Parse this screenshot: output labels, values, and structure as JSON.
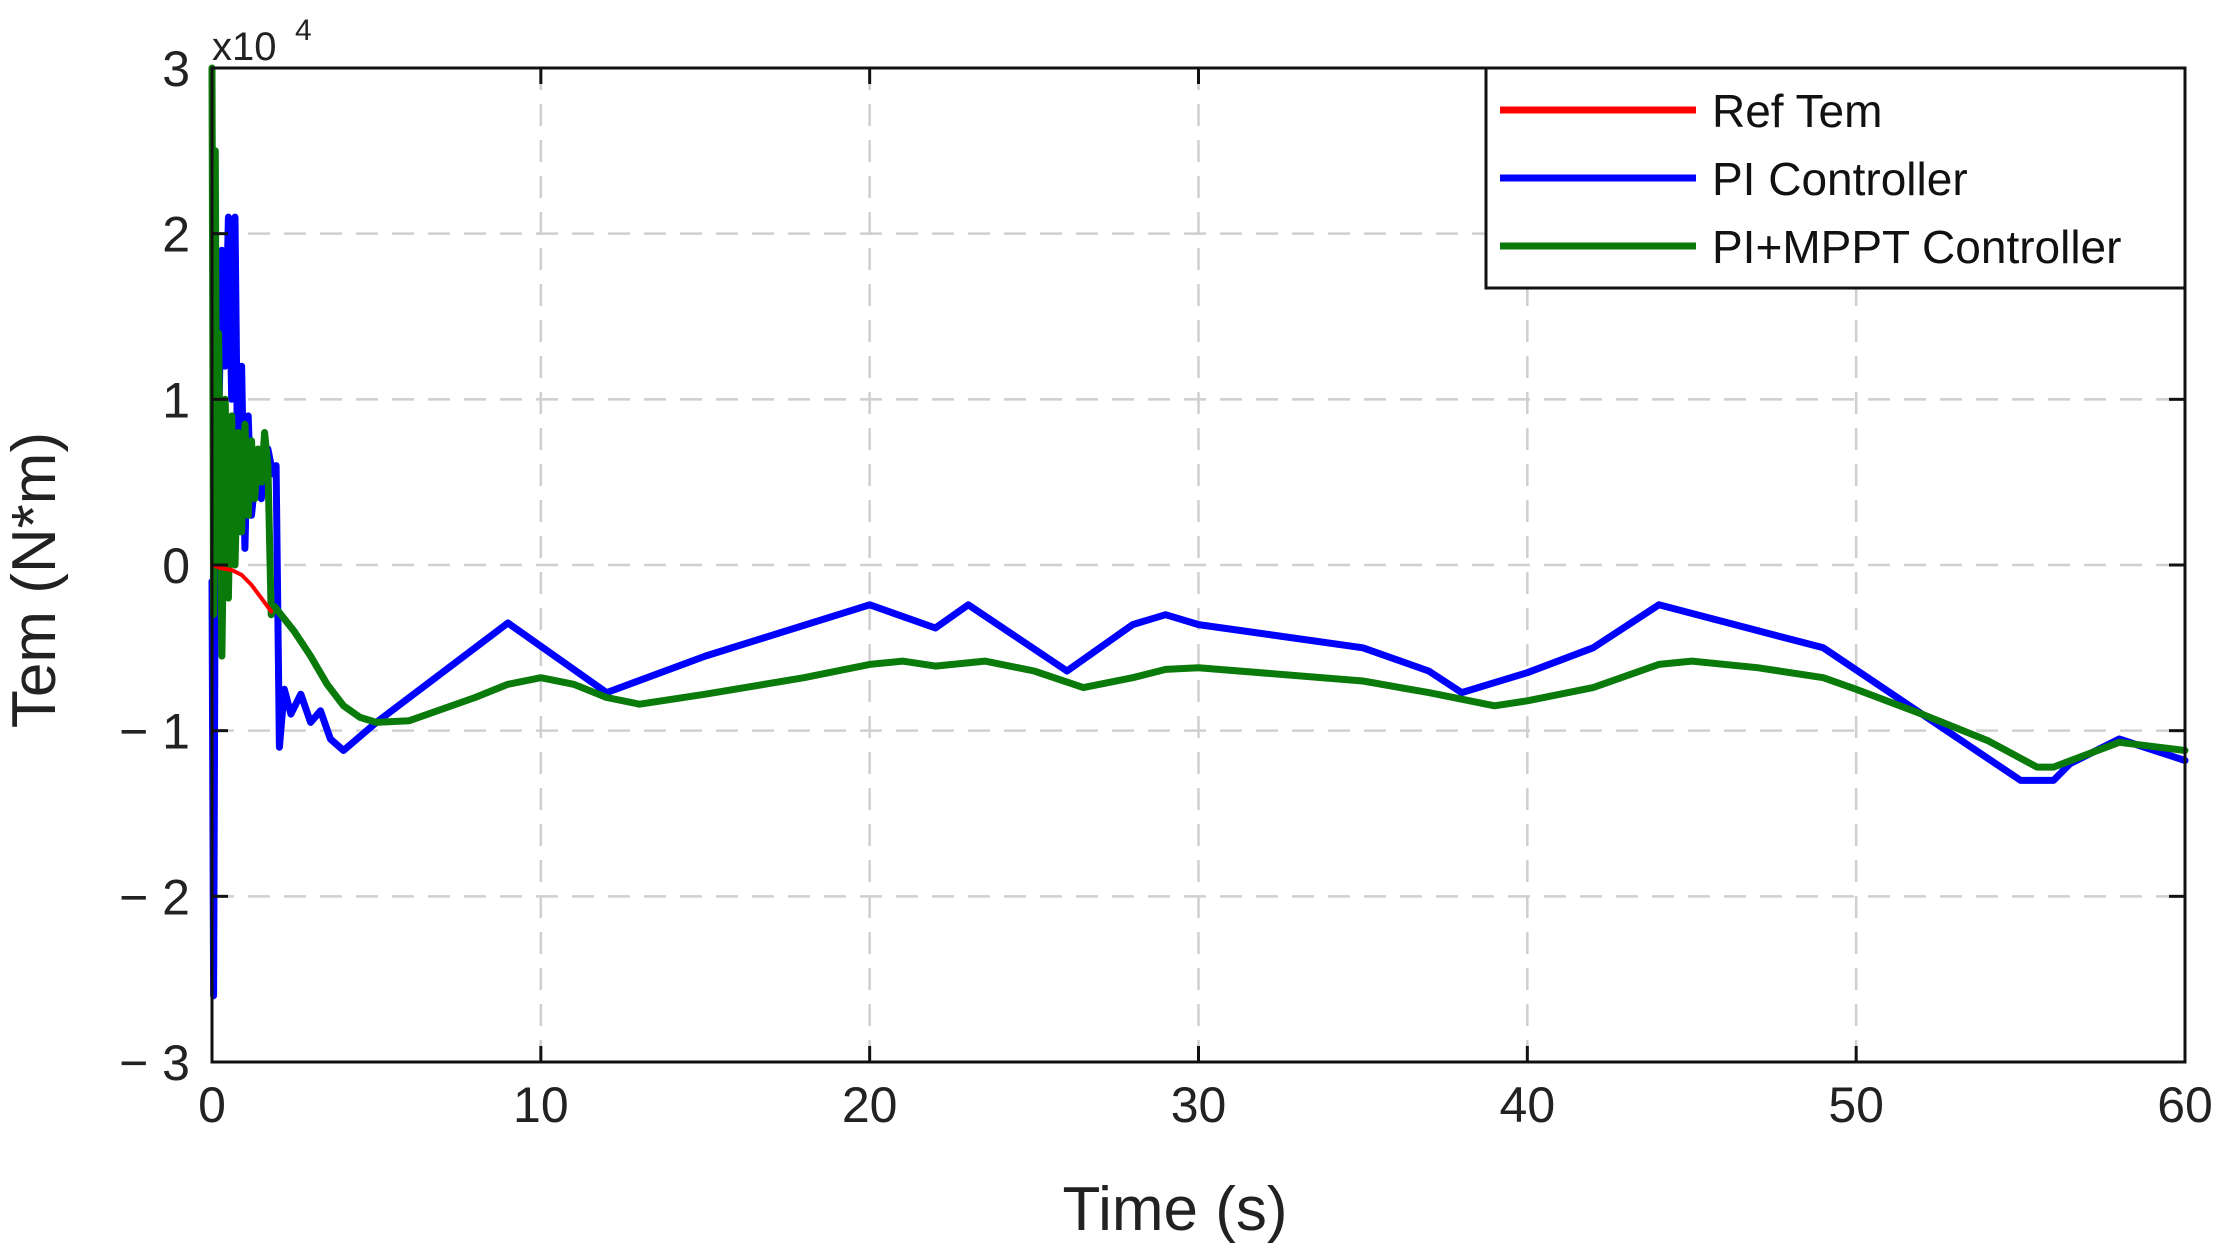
{
  "chart_data": {
    "type": "line",
    "xlabel": "Time (s)",
    "ylabel": "Tem (N*m)",
    "y_multiplier": {
      "base": "x10",
      "exponent": "4"
    },
    "xlim": [
      0,
      60
    ],
    "ylim": [
      -3,
      3
    ],
    "xticks": [
      0,
      10,
      20,
      30,
      40,
      50,
      60
    ],
    "yticks": [
      3,
      2,
      1,
      0,
      -1,
      -2,
      -3
    ],
    "xtick_labels": [
      "0",
      "10",
      "20",
      "30",
      "40",
      "50",
      "60"
    ],
    "ytick_labels": [
      "3",
      "2",
      "1",
      "0",
      "− 1",
      "− 2",
      "− 3"
    ],
    "grid": true,
    "legend_position": "top-right",
    "series": [
      {
        "name": "Ref Tem",
        "color": "#ff0000",
        "points": [
          [
            0,
            0
          ],
          [
            0.3,
            -0.02
          ],
          [
            0.6,
            -0.03
          ],
          [
            0.9,
            -0.06
          ],
          [
            1.2,
            -0.12
          ],
          [
            1.5,
            -0.2
          ],
          [
            1.8,
            -0.28
          ]
        ]
      },
      {
        "name": "PI Controller",
        "color": "#0000ff",
        "points": [
          [
            0,
            -0.1
          ],
          [
            0.05,
            -2.6
          ],
          [
            0.12,
            1.2
          ],
          [
            0.2,
            0.8
          ],
          [
            0.3,
            1.9
          ],
          [
            0.4,
            1.2
          ],
          [
            0.5,
            2.1
          ],
          [
            0.6,
            1.0
          ],
          [
            0.7,
            2.1
          ],
          [
            0.8,
            0.2
          ],
          [
            0.9,
            1.2
          ],
          [
            1.0,
            0.1
          ],
          [
            1.1,
            0.9
          ],
          [
            1.2,
            0.3
          ],
          [
            1.35,
            0.6
          ],
          [
            1.5,
            0.4
          ],
          [
            1.7,
            0.7
          ],
          [
            1.85,
            0.55
          ],
          [
            1.95,
            0.6
          ],
          [
            2.05,
            -1.1
          ],
          [
            2.2,
            -0.75
          ],
          [
            2.4,
            -0.9
          ],
          [
            2.7,
            -0.78
          ],
          [
            3.0,
            -0.95
          ],
          [
            3.3,
            -0.88
          ],
          [
            3.6,
            -1.05
          ],
          [
            4.0,
            -1.12
          ],
          [
            5.0,
            -0.95
          ],
          [
            9.0,
            -0.35
          ],
          [
            12.0,
            -0.77
          ],
          [
            15.0,
            -0.55
          ],
          [
            20.0,
            -0.24
          ],
          [
            22.0,
            -0.38
          ],
          [
            23.0,
            -0.24
          ],
          [
            26.0,
            -0.64
          ],
          [
            28.0,
            -0.36
          ],
          [
            29.0,
            -0.3
          ],
          [
            30.0,
            -0.36
          ],
          [
            35.0,
            -0.5
          ],
          [
            37.0,
            -0.64
          ],
          [
            38.0,
            -0.77
          ],
          [
            40.0,
            -0.65
          ],
          [
            42.0,
            -0.5
          ],
          [
            44.0,
            -0.24
          ],
          [
            49.0,
            -0.5
          ],
          [
            55.0,
            -1.3
          ],
          [
            56.0,
            -1.3
          ],
          [
            56.5,
            -1.2
          ],
          [
            58.0,
            -1.05
          ],
          [
            60.0,
            -1.18
          ]
        ]
      },
      {
        "name": "PI+MPPT Controller",
        "color": "#0a7a0a",
        "points": [
          [
            0,
            3.0
          ],
          [
            0.05,
            -0.3
          ],
          [
            0.1,
            2.5
          ],
          [
            0.15,
            0.0
          ],
          [
            0.2,
            1.4
          ],
          [
            0.3,
            -0.55
          ],
          [
            0.4,
            1.0
          ],
          [
            0.5,
            -0.2
          ],
          [
            0.6,
            0.9
          ],
          [
            0.7,
            0.0
          ],
          [
            0.8,
            0.8
          ],
          [
            0.9,
            0.2
          ],
          [
            1.0,
            0.85
          ],
          [
            1.1,
            0.3
          ],
          [
            1.2,
            0.75
          ],
          [
            1.3,
            0.4
          ],
          [
            1.4,
            0.7
          ],
          [
            1.5,
            0.5
          ],
          [
            1.6,
            0.8
          ],
          [
            1.7,
            0.6
          ],
          [
            1.8,
            -0.3
          ],
          [
            1.9,
            -0.25
          ],
          [
            2.5,
            -0.4
          ],
          [
            3.0,
            -0.55
          ],
          [
            3.5,
            -0.72
          ],
          [
            4.0,
            -0.85
          ],
          [
            4.5,
            -0.92
          ],
          [
            5.0,
            -0.95
          ],
          [
            6.0,
            -0.94
          ],
          [
            8.0,
            -0.8
          ],
          [
            9.0,
            -0.72
          ],
          [
            10.0,
            -0.68
          ],
          [
            11.0,
            -0.72
          ],
          [
            12.0,
            -0.8
          ],
          [
            13.0,
            -0.84
          ],
          [
            15.0,
            -0.78
          ],
          [
            18.0,
            -0.68
          ],
          [
            20.0,
            -0.6
          ],
          [
            21.0,
            -0.58
          ],
          [
            22.0,
            -0.61
          ],
          [
            23.5,
            -0.58
          ],
          [
            25.0,
            -0.64
          ],
          [
            26.5,
            -0.74
          ],
          [
            28.0,
            -0.68
          ],
          [
            29.0,
            -0.63
          ],
          [
            30.0,
            -0.62
          ],
          [
            35.0,
            -0.7
          ],
          [
            37.0,
            -0.77
          ],
          [
            39.0,
            -0.85
          ],
          [
            40.0,
            -0.82
          ],
          [
            42.0,
            -0.74
          ],
          [
            44.0,
            -0.6
          ],
          [
            45.0,
            -0.58
          ],
          [
            47.0,
            -0.62
          ],
          [
            49.0,
            -0.68
          ],
          [
            50.0,
            -0.75
          ],
          [
            52.0,
            -0.9
          ],
          [
            54.0,
            -1.06
          ],
          [
            55.5,
            -1.22
          ],
          [
            56.0,
            -1.22
          ],
          [
            58.0,
            -1.07
          ],
          [
            60.0,
            -1.12
          ]
        ]
      }
    ]
  }
}
